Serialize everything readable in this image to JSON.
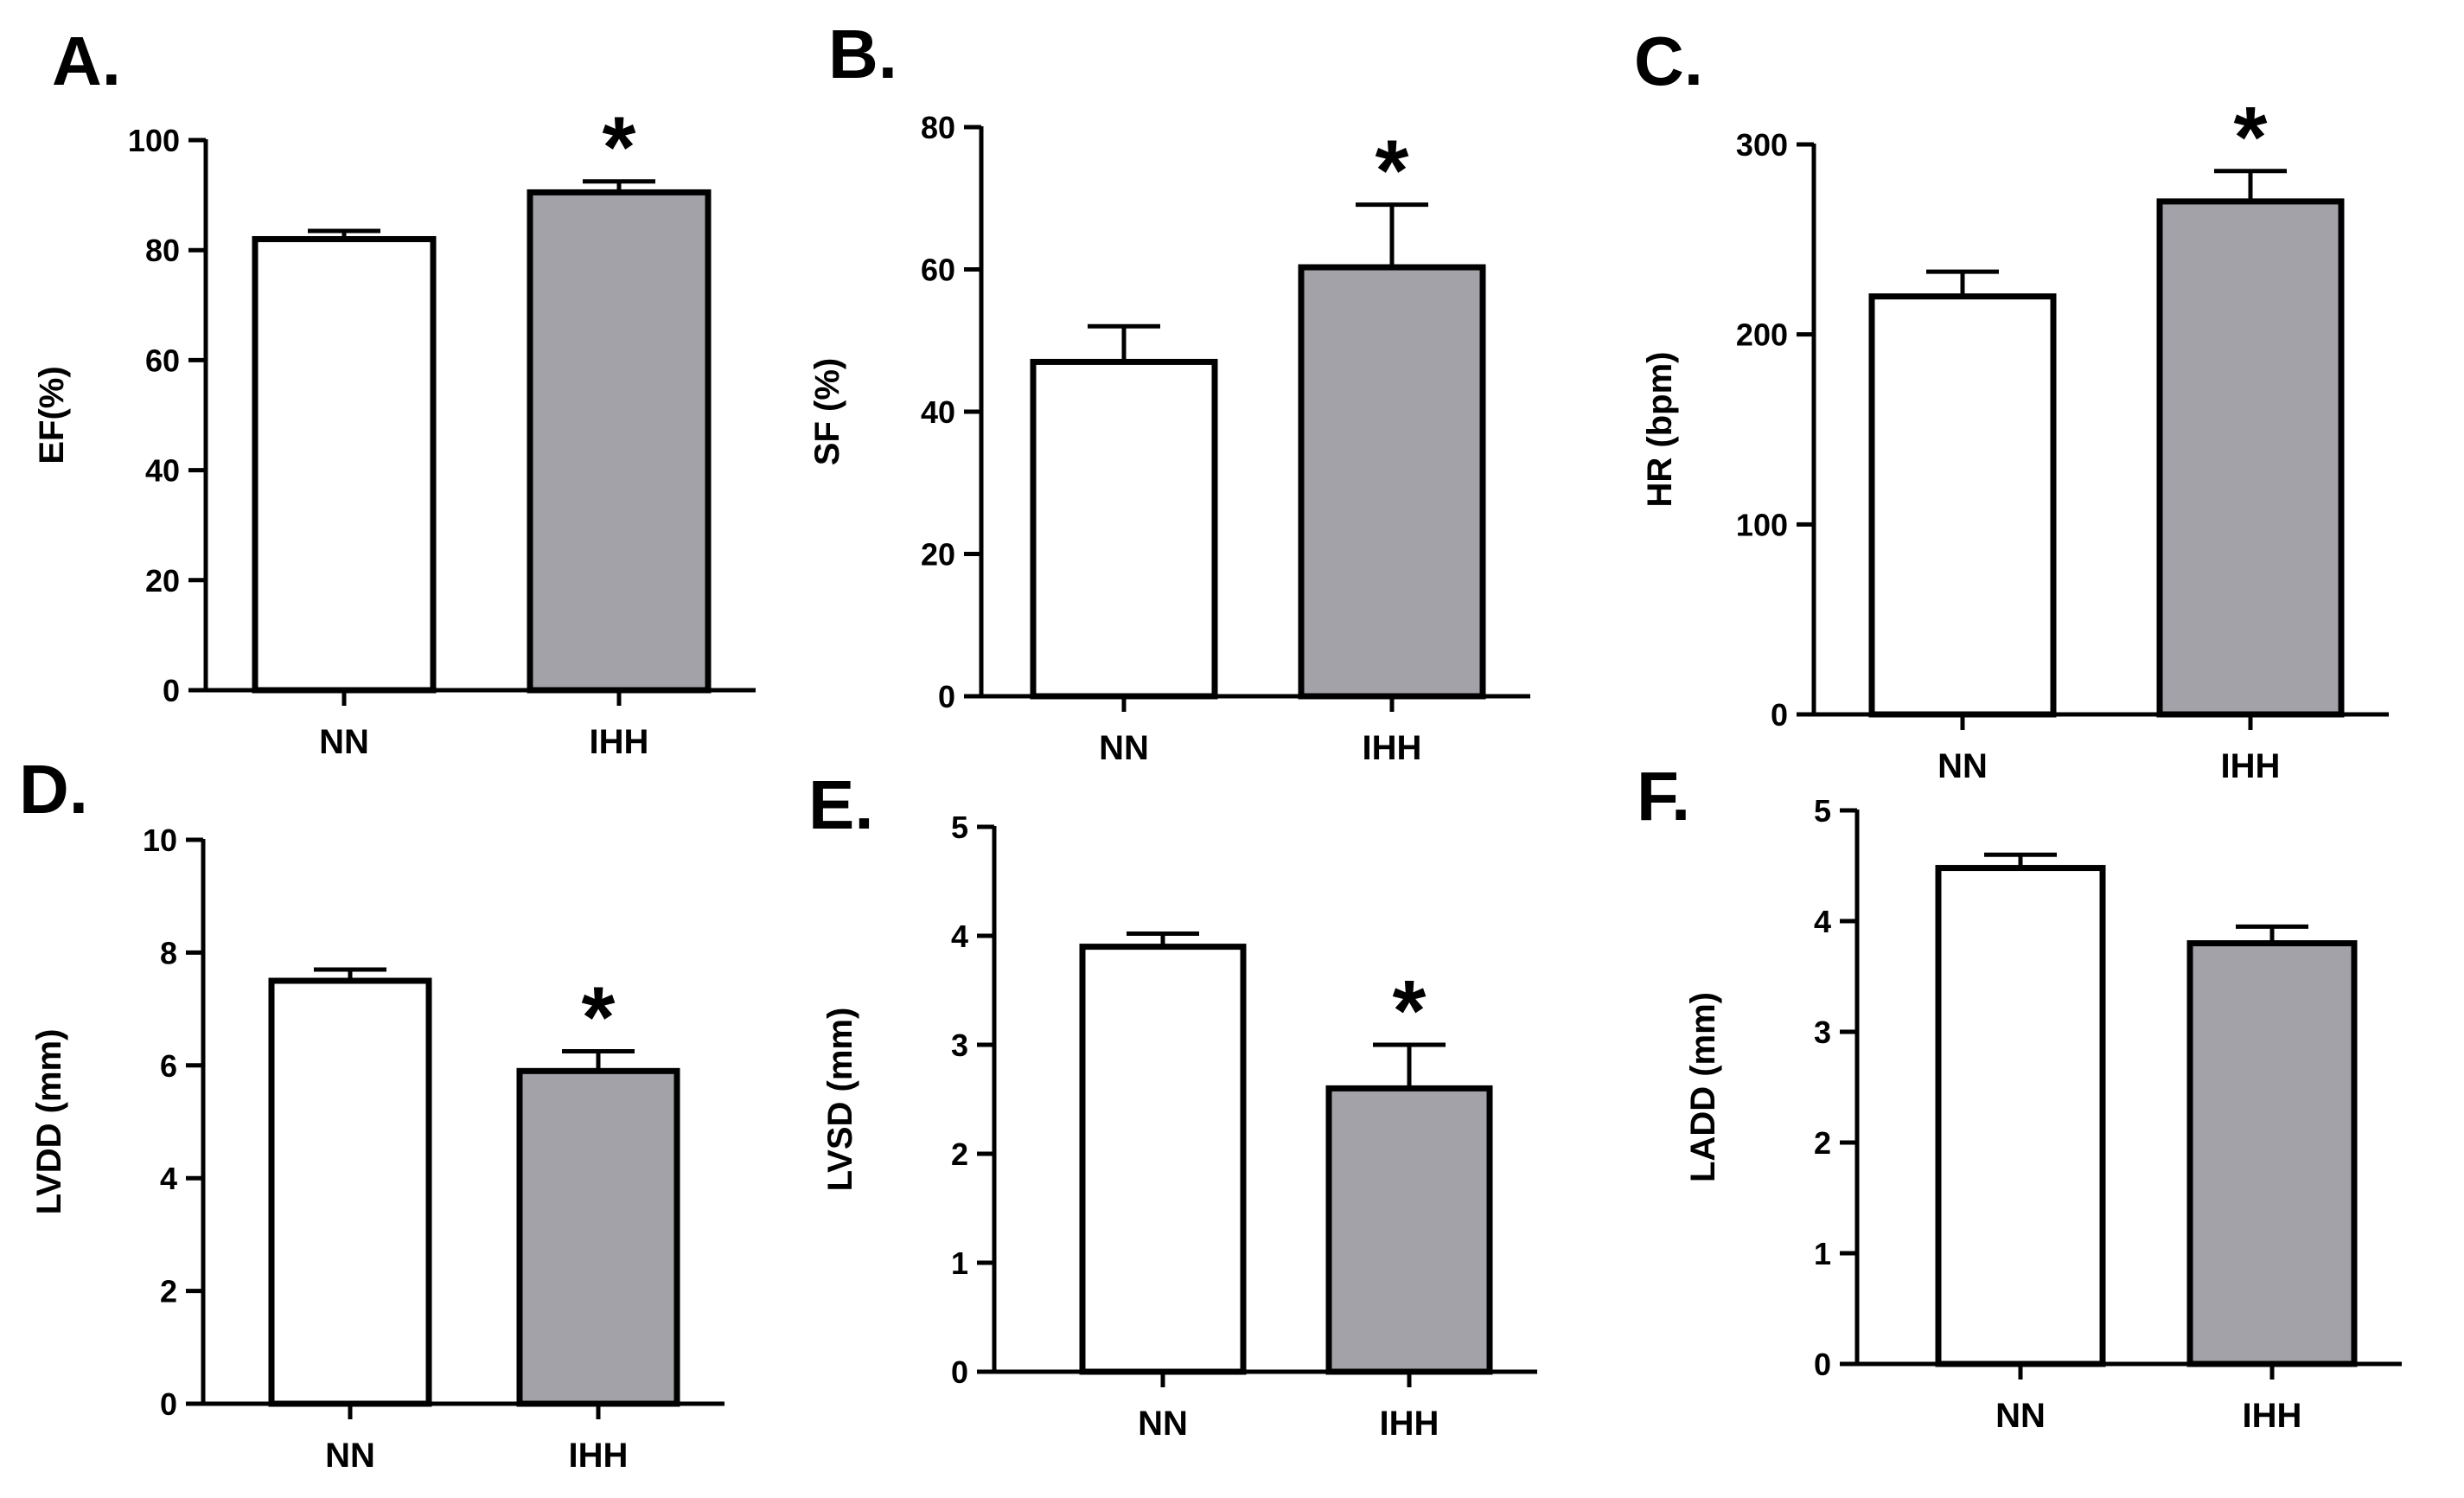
{
  "colors": {
    "nn_fill": "#ffffff",
    "ihh_fill": "#a3a2a8",
    "stroke": "#000000"
  },
  "chart_data": [
    {
      "panel": "A.",
      "type": "bar",
      "ylabel": "EF(%)",
      "categories": [
        "NN",
        "IHH"
      ],
      "values": [
        82,
        90.5
      ],
      "errors": [
        1.5,
        2
      ],
      "ylim": [
        0,
        100
      ],
      "yticks": [
        "0",
        "20",
        "40",
        "60",
        "80",
        "100"
      ],
      "significance": [
        "",
        "*"
      ]
    },
    {
      "panel": "B.",
      "type": "bar",
      "ylabel": "SF (%)",
      "categories": [
        "NN",
        "IHH"
      ],
      "values": [
        47,
        60.3
      ],
      "errors": [
        5,
        8.8
      ],
      "ylim": [
        0,
        80
      ],
      "yticks": [
        "0",
        "20",
        "40",
        "60",
        "80"
      ],
      "significance": [
        "",
        "*"
      ]
    },
    {
      "panel": "C.",
      "type": "bar",
      "ylabel": "HR (bpm)",
      "categories": [
        "NN",
        "IHH"
      ],
      "values": [
        220,
        270
      ],
      "errors": [
        13,
        16
      ],
      "ylim": [
        0,
        300
      ],
      "yticks": [
        "0",
        "100",
        "200",
        "300"
      ],
      "significance": [
        "",
        "*"
      ]
    },
    {
      "panel": "D.",
      "type": "bar",
      "ylabel": "LVDD (mm)",
      "categories": [
        "NN",
        "IHH"
      ],
      "values": [
        7.5,
        5.9
      ],
      "errors": [
        0.2,
        0.35
      ],
      "ylim": [
        0,
        10
      ],
      "yticks": [
        "0",
        "2",
        "4",
        "6",
        "8",
        "10"
      ],
      "significance": [
        "",
        "*"
      ]
    },
    {
      "panel": "E.",
      "type": "bar",
      "ylabel": "LVSD (mm)",
      "categories": [
        "NN",
        "IHH"
      ],
      "values": [
        3.9,
        2.6
      ],
      "errors": [
        0.12,
        0.4
      ],
      "ylim": [
        0,
        5
      ],
      "yticks": [
        "0",
        "1",
        "2",
        "3",
        "4",
        "5"
      ],
      "significance": [
        "",
        "*"
      ]
    },
    {
      "panel": "F.",
      "type": "bar",
      "ylabel": "LADD (mm)",
      "categories": [
        "NN",
        "IHH"
      ],
      "values": [
        4.48,
        3.8
      ],
      "errors": [
        0.12,
        0.15
      ],
      "ylim": [
        0,
        5
      ],
      "yticks": [
        "0",
        "1",
        "2",
        "3",
        "4",
        "5"
      ],
      "significance": [
        "",
        ""
      ]
    }
  ]
}
